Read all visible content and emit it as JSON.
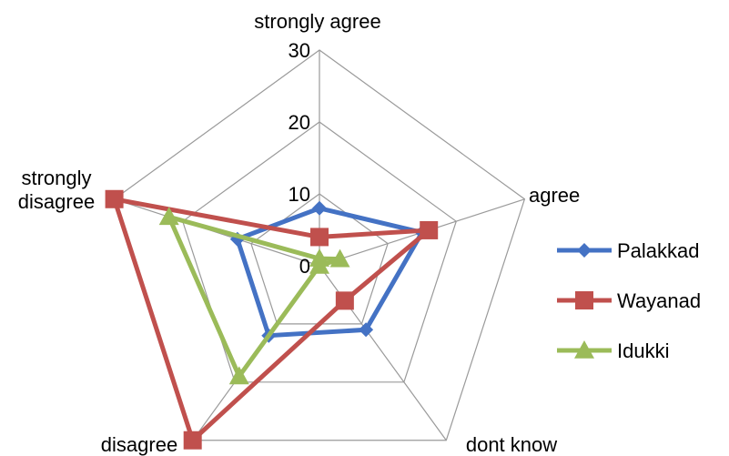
{
  "chart_data": {
    "type": "radar",
    "title": "",
    "categories": [
      "strongly agree",
      "agree",
      "dont know",
      "disagree",
      "strongly\ndisagree"
    ],
    "rlim": [
      0,
      30
    ],
    "ticks": [
      "0",
      "10",
      "20",
      "30"
    ],
    "grid": true,
    "legend_position": "right",
    "series": [
      {
        "name": "Palakkad",
        "values": [
          8,
          15,
          11,
          12,
          12
        ],
        "color": "#4472C4",
        "marker": "diamond"
      },
      {
        "name": "Wayanad",
        "values": [
          4,
          16,
          6,
          30,
          30
        ],
        "color": "#C0504D",
        "marker": "square"
      },
      {
        "name": "Idukki",
        "values": [
          1,
          3,
          0,
          19,
          22
        ],
        "color": "#9BBB59",
        "marker": "triangle"
      }
    ]
  }
}
